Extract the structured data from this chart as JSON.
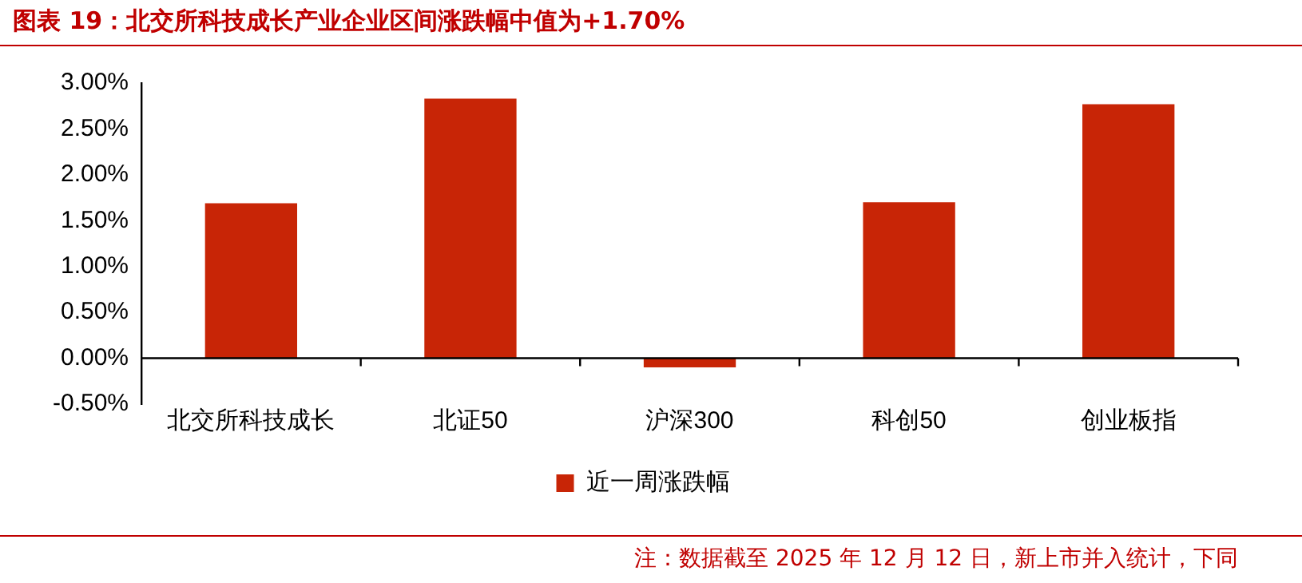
{
  "chart_data": {
    "type": "bar",
    "title": "图表 19：北交所科技成长产业企业区间涨跌幅中值为+1.70%",
    "categories": [
      "北交所科技成长",
      "北证50",
      "沪深300",
      "科创50",
      "创业板指"
    ],
    "series": [
      {
        "name": "近一周涨跌幅",
        "color": "#c82506",
        "values": [
          1.69,
          2.83,
          -0.1,
          1.7,
          2.77
        ]
      }
    ],
    "ylim": [
      -0.5,
      3
    ],
    "yticks": [
      {
        "value": -0.5,
        "label": "-0.50%"
      },
      {
        "value": 0,
        "label": "0.00%"
      },
      {
        "value": 0.5,
        "label": "0.50%"
      },
      {
        "value": 1,
        "label": "1.00%"
      },
      {
        "value": 1.5,
        "label": "1.50%"
      },
      {
        "value": 2,
        "label": "2.00%"
      },
      {
        "value": 2.5,
        "label": "2.50%"
      },
      {
        "value": 3,
        "label": "3.00%"
      }
    ],
    "grid": false,
    "legend": "bottom",
    "annotations": [
      "注：数据截至 2025 年 12 月 12 日，新上市并入统计，下同"
    ]
  }
}
